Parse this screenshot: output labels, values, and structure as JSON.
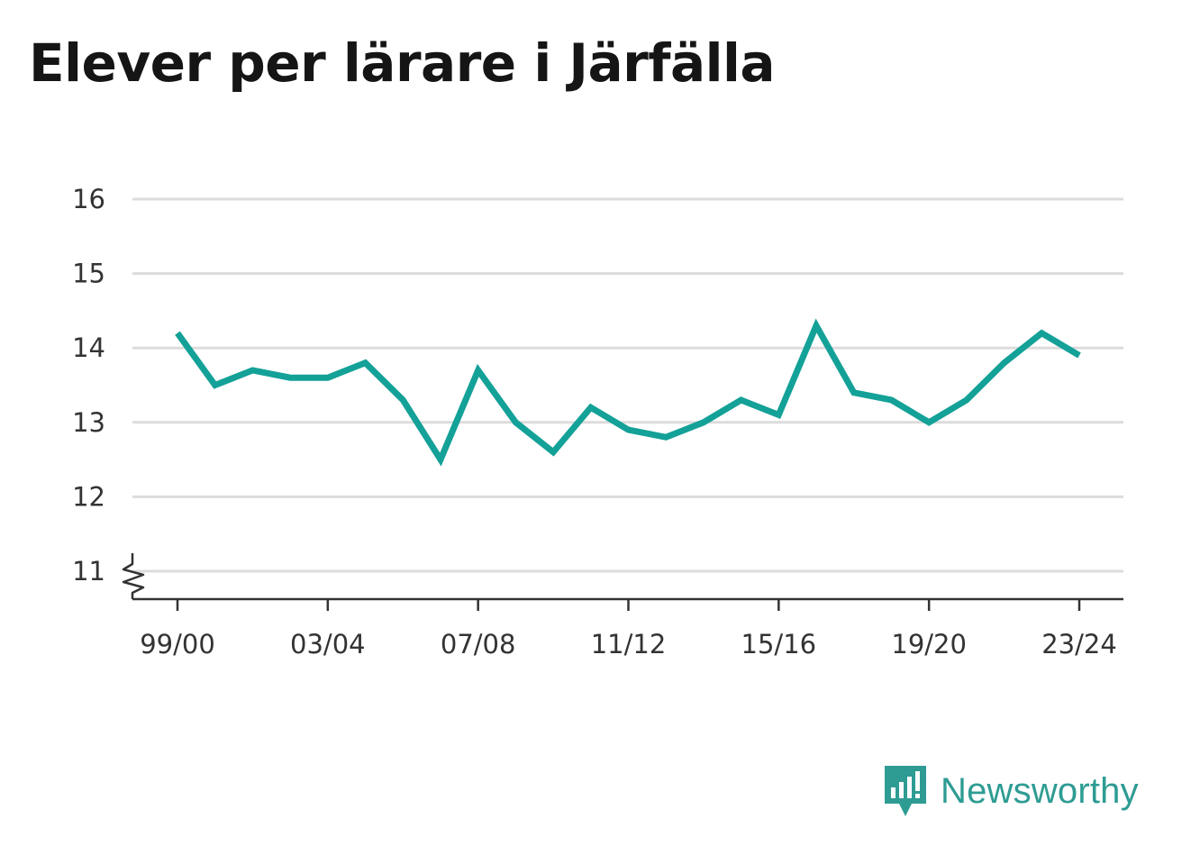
{
  "chart_data": {
    "type": "line",
    "title": "Elever per lärare i Järfälla",
    "xlabel": "",
    "ylabel": "",
    "x": [
      "99/00",
      "00/01",
      "01/02",
      "02/03",
      "03/04",
      "04/05",
      "05/06",
      "06/07",
      "07/08",
      "08/09",
      "09/10",
      "10/11",
      "11/12",
      "12/13",
      "13/14",
      "14/15",
      "15/16",
      "16/17",
      "17/18",
      "18/19",
      "19/20",
      "20/21",
      "21/22",
      "22/23",
      "23/24"
    ],
    "x_tick_labels": [
      "99/00",
      "03/04",
      "07/08",
      "11/12",
      "15/16",
      "19/20",
      "23/24"
    ],
    "series": [
      {
        "name": "",
        "color": "#13a198",
        "values": [
          14.2,
          13.5,
          13.7,
          13.6,
          13.6,
          13.8,
          13.3,
          12.5,
          13.7,
          13.0,
          12.6,
          13.2,
          12.9,
          12.8,
          13.0,
          13.3,
          13.1,
          14.3,
          13.4,
          13.3,
          13.0,
          13.3,
          13.8,
          14.2,
          13.9
        ]
      }
    ],
    "yticks": [
      11,
      12,
      13,
      14,
      15,
      16
    ],
    "ylim": [
      11,
      16
    ],
    "axis_break": true,
    "grid": true,
    "legend": "none"
  },
  "brand": {
    "name": "Newsworthy",
    "icon": "newsworthy-logo-icon",
    "color": "#2e9c93"
  }
}
